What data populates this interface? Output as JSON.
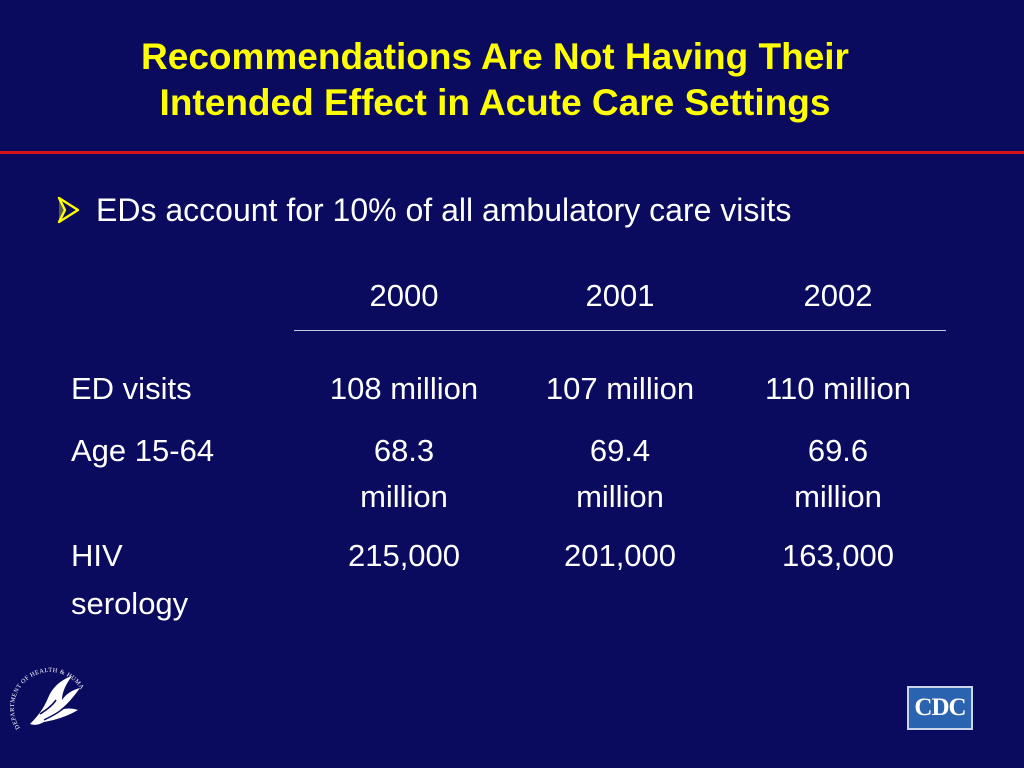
{
  "slide": {
    "title_lines": [
      "Recommendations Are Not Having Their",
      "Intended Effect in Acute Care Settings"
    ],
    "bullet": "EDs account for 10% of all ambulatory care visits",
    "table": {
      "headers": [
        "2000",
        "2001",
        "2002"
      ],
      "rows": [
        {
          "label_lines": [
            "ED visits"
          ],
          "cells": [
            [
              "108 million"
            ],
            [
              "107 million"
            ],
            [
              "110 million"
            ]
          ]
        },
        {
          "label_lines": [
            "Age 15-64"
          ],
          "cells": [
            [
              "68.3",
              "million"
            ],
            [
              "69.4",
              "million"
            ],
            [
              "69.6",
              "million"
            ]
          ]
        },
        {
          "label_lines": [
            "HIV",
            "serology"
          ],
          "cells": [
            [
              "215,000"
            ],
            [
              "201,000"
            ],
            [
              "163,000"
            ]
          ]
        }
      ]
    },
    "logos": {
      "cdc_text": "CDC",
      "hhs_seal_text": "DEPARTMENT OF HEALTH & HUMAN SERVICES · USA"
    },
    "colors": {
      "background": "#0a0a5e",
      "title": "#ffff00",
      "rule": "#d4131b",
      "text": "#ffffff"
    }
  }
}
